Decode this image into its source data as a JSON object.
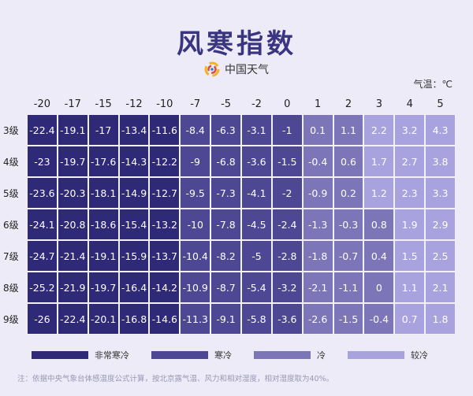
{
  "title": "风寒指数",
  "brand": "中国天气",
  "unit_label": "气温：℃",
  "note": "注：依据中央气象台体感温度公式计算，按北京露气温、风力和相对湿度，相对湿度取为40%。",
  "colors": {
    "very_cold": "#2f2a78",
    "cold": "#4d4794",
    "cool": "#7c76b9",
    "mild": "#a8a2de"
  },
  "legend": [
    {
      "label": "非常寒冷",
      "color": "#2f2a78"
    },
    {
      "label": "寒冷",
      "color": "#4d4794"
    },
    {
      "label": "冷",
      "color": "#7c76b9"
    },
    {
      "label": "较冷",
      "color": "#a8a2de"
    }
  ],
  "chart_data": {
    "type": "heatmap",
    "title": "风寒指数",
    "x_categories": [
      "-20",
      "-17",
      "-15",
      "-12",
      "-10",
      "-7",
      "-5",
      "-2",
      "0",
      "1",
      "2",
      "3",
      "4",
      "5"
    ],
    "y_categories": [
      "3级",
      "4级",
      "5级",
      "6级",
      "7级",
      "8级",
      "9级"
    ],
    "values": [
      [
        "-22.4",
        "-19.1",
        "-17",
        "-13.4",
        "-11.6",
        "-8.4",
        "-6.3",
        "-3.1",
        "-1",
        "0.1",
        "1.1",
        "2.2",
        "3.2",
        "4.3"
      ],
      [
        "-23",
        "-19.7",
        "-17.6",
        "-14.3",
        "-12.2",
        "-9",
        "-6.8",
        "-3.6",
        "-1.5",
        "-0.4",
        "0.6",
        "1.7",
        "2.7",
        "3.8"
      ],
      [
        "-23.6",
        "-20.3",
        "-18.1",
        "-14.9",
        "-12.7",
        "-9.5",
        "-7.3",
        "-4.1",
        "-2",
        "-0.9",
        "0.2",
        "1.2",
        "2.3",
        "3.3"
      ],
      [
        "-24.1",
        "-20.8",
        "-18.6",
        "-15.4",
        "-13.2",
        "-10",
        "-7.8",
        "-4.5",
        "-2.4",
        "-1.3",
        "-0.3",
        "0.8",
        "1.9",
        "2.9"
      ],
      [
        "-24.7",
        "-21.4",
        "-19.1",
        "-15.9",
        "-13.7",
        "-10.4",
        "-8.2",
        "-5",
        "-2.8",
        "-1.8",
        "-0.7",
        "0.4",
        "1.5",
        "2.5"
      ],
      [
        "-25.2",
        "-21.9",
        "-19.7",
        "-16.4",
        "-14.2",
        "-10.9",
        "-8.7",
        "-5.4",
        "-3.2",
        "-2.1",
        "-1.1",
        "0",
        "1.1",
        "2.1"
      ],
      [
        "-26",
        "-22.4",
        "-20.1",
        "-16.8",
        "-14.6",
        "-11.3",
        "-9.1",
        "-5.8",
        "-3.6",
        "-2.6",
        "-1.5",
        "-0.4",
        "0.7",
        "1.8"
      ]
    ],
    "categories_color": [
      [
        "very_cold",
        "very_cold",
        "very_cold",
        "very_cold",
        "very_cold",
        "cold",
        "cold",
        "cold",
        "cold",
        "cool",
        "cool",
        "mild",
        "mild",
        "mild"
      ],
      [
        "very_cold",
        "very_cold",
        "very_cold",
        "very_cold",
        "very_cold",
        "cold",
        "cold",
        "cold",
        "cold",
        "cool",
        "cool",
        "mild",
        "mild",
        "mild"
      ],
      [
        "very_cold",
        "very_cold",
        "very_cold",
        "very_cold",
        "very_cold",
        "cold",
        "cold",
        "cold",
        "cold",
        "cool",
        "cool",
        "mild",
        "mild",
        "mild"
      ],
      [
        "very_cold",
        "very_cold",
        "very_cold",
        "very_cold",
        "very_cold",
        "cold",
        "cold",
        "cold",
        "cold",
        "cool",
        "cool",
        "cool",
        "mild",
        "mild"
      ],
      [
        "very_cold",
        "very_cold",
        "very_cold",
        "very_cold",
        "very_cold",
        "cold",
        "cold",
        "cold",
        "cold",
        "cool",
        "cool",
        "cool",
        "mild",
        "mild"
      ],
      [
        "very_cold",
        "very_cold",
        "very_cold",
        "very_cold",
        "very_cold",
        "cold",
        "cold",
        "cold",
        "cold",
        "cool",
        "cool",
        "cool",
        "mild",
        "mild"
      ],
      [
        "very_cold",
        "very_cold",
        "very_cold",
        "very_cold",
        "very_cold",
        "cold",
        "cold",
        "cold",
        "cold",
        "cool",
        "cool",
        "cool",
        "mild",
        "mild"
      ]
    ]
  }
}
